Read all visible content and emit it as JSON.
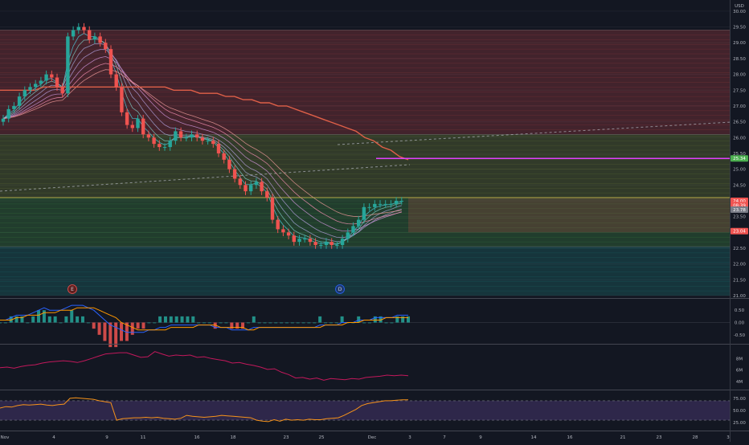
{
  "currency_label": "USD",
  "price_axis": {
    "ticks": [
      "30.00",
      "29.50",
      "29.00",
      "28.50",
      "28.00",
      "27.50",
      "27.00",
      "26.50",
      "26.00",
      "25.50",
      "25.00",
      "24.50",
      "24.00",
      "23.50",
      "23.00",
      "22.50",
      "22.00",
      "21.50",
      "21.00"
    ]
  },
  "price_tags": [
    {
      "label": "25.34",
      "value": 25.34,
      "color": "#4caf50"
    },
    {
      "label": "24.00",
      "value": 24.0,
      "color": "#ef5350"
    },
    {
      "label": "08:39",
      "value": 23.86,
      "color": "#ef5350"
    },
    {
      "label": "23.78",
      "value": 23.72,
      "color": "#787b86"
    },
    {
      "label": "23.04",
      "value": 23.04,
      "color": "#ef5350"
    }
  ],
  "x_axis_ticks": [
    "Nov",
    "4",
    "9",
    "11",
    "16",
    "18",
    "23",
    "25",
    "Dec",
    "3",
    "7",
    "9",
    "14",
    "16",
    "21",
    "23",
    "28",
    "3"
  ],
  "event_markers": [
    "E",
    "D"
  ],
  "macd_axis": {
    "ticks": [
      "0.50",
      "0.00",
      "-0.50"
    ]
  },
  "volume_axis": {
    "ticks": [
      "8M",
      "6M",
      "4M"
    ]
  },
  "rsi_axis": {
    "ticks": [
      "75.00",
      "50.00",
      "25.00"
    ]
  },
  "colors": {
    "up": "#26a69a",
    "down": "#ef5350",
    "background": "#131722",
    "ma_200": "#e06048",
    "level_line": "#e040fb",
    "rsi_line": "#f7931a",
    "macd_line": "#2962ff",
    "signal_line": "#ff9800",
    "volume_line": "#c2185b"
  },
  "chart_data": {
    "type": "candlestick",
    "price_range": [
      21.0,
      30.15
    ],
    "zones": [
      {
        "from": 26.1,
        "to": 29.4,
        "color": "red"
      },
      {
        "from": 24.1,
        "to": 26.1,
        "color": "olive"
      },
      {
        "from": 22.55,
        "to": 24.1,
        "color": "green"
      },
      {
        "from": 21.0,
        "to": 22.55,
        "color": "teal"
      }
    ],
    "horizontal_levels": [
      25.34,
      24.1
    ],
    "close": [
      26.6,
      26.9,
      27.0,
      27.3,
      27.5,
      27.6,
      27.7,
      27.8,
      28.0,
      27.9,
      27.6,
      27.4,
      29.2,
      29.4,
      29.5,
      29.4,
      29.1,
      29.2,
      29.0,
      28.8,
      28.0,
      27.6,
      26.8,
      26.4,
      26.3,
      26.6,
      26.1,
      26.0,
      25.8,
      25.7,
      25.7,
      25.9,
      26.2,
      26.0,
      26.0,
      26.1,
      26.0,
      25.9,
      25.9,
      25.8,
      25.5,
      25.3,
      25.0,
      24.7,
      24.5,
      24.3,
      24.5,
      24.6,
      24.3,
      24.1,
      23.4,
      23.1,
      23.0,
      22.9,
      22.7,
      22.8,
      22.8,
      22.7,
      22.6,
      22.6,
      22.7,
      22.6,
      22.6,
      22.8,
      23.0,
      23.2,
      23.4,
      23.8,
      23.8,
      23.9,
      23.9,
      23.9,
      23.9,
      24.0,
      24.0
    ],
    "ma_200": [
      27.5,
      27.5,
      27.5,
      27.5,
      27.5,
      27.6,
      27.6,
      27.6,
      27.6,
      27.6,
      27.6,
      27.6,
      27.6,
      27.6,
      27.6,
      27.6,
      27.6,
      27.6,
      27.6,
      27.6,
      27.5,
      27.5,
      27.5,
      27.4,
      27.4,
      27.4,
      27.3,
      27.3,
      27.2,
      27.2,
      27.1,
      27.1,
      27.0,
      27.0,
      26.9,
      26.8,
      26.7,
      26.6,
      26.5,
      26.4,
      26.3,
      26.2,
      26.0,
      25.9,
      25.7,
      25.6,
      25.4,
      25.3
    ],
    "macd": [
      0.1,
      0.1,
      0.2,
      0.3,
      0.3,
      0.3,
      0.4,
      0.5,
      0.6,
      0.5,
      0.5,
      0.5,
      0.6,
      0.7,
      0.7,
      0.7,
      0.6,
      0.5,
      0.3,
      0.1,
      -0.1,
      -0.2,
      -0.3,
      -0.4,
      -0.4,
      -0.4,
      -0.4,
      -0.3,
      -0.3,
      -0.2,
      -0.2,
      -0.1,
      -0.1,
      -0.1,
      -0.1,
      -0.1,
      -0.1,
      -0.1,
      -0.1,
      -0.2,
      -0.2,
      -0.2,
      -0.3,
      -0.3,
      -0.3,
      -0.3,
      -0.2,
      -0.2,
      -0.2,
      -0.2,
      -0.2,
      -0.2,
      -0.2,
      -0.2,
      -0.2,
      -0.2,
      -0.2,
      -0.2,
      -0.1,
      -0.1,
      -0.1,
      -0.1,
      0.0,
      0.0,
      0.0,
      0.1,
      0.1,
      0.1,
      0.2,
      0.2,
      0.2,
      0.2,
      0.3,
      0.3,
      0.3
    ],
    "macd_signal": [
      0.1,
      0.1,
      0.1,
      0.2,
      0.2,
      0.3,
      0.3,
      0.3,
      0.4,
      0.4,
      0.4,
      0.5,
      0.5,
      0.5,
      0.6,
      0.6,
      0.6,
      0.6,
      0.5,
      0.4,
      0.3,
      0.2,
      0.0,
      -0.1,
      -0.2,
      -0.3,
      -0.3,
      -0.3,
      -0.3,
      -0.3,
      -0.3,
      -0.2,
      -0.2,
      -0.2,
      -0.2,
      -0.2,
      -0.1,
      -0.1,
      -0.1,
      -0.1,
      -0.2,
      -0.2,
      -0.2,
      -0.2,
      -0.2,
      -0.3,
      -0.3,
      -0.2,
      -0.2,
      -0.2,
      -0.2,
      -0.2,
      -0.2,
      -0.2,
      -0.2,
      -0.2,
      -0.2,
      -0.2,
      -0.2,
      -0.1,
      -0.1,
      -0.1,
      -0.1,
      0.0,
      0.0,
      0.0,
      0.1,
      0.1,
      0.1,
      0.1,
      0.2,
      0.2,
      0.2,
      0.2,
      0.2
    ],
    "volume_m": [
      6.4,
      6.5,
      6.3,
      6.6,
      6.8,
      6.9,
      7.2,
      7.4,
      7.5,
      7.6,
      7.5,
      7.3,
      7.6,
      8.0,
      8.4,
      8.8,
      8.9,
      9.0,
      9.0,
      8.6,
      8.2,
      8.3,
      9.2,
      8.8,
      8.4,
      8.6,
      8.5,
      8.6,
      8.2,
      8.3,
      8.0,
      7.8,
      7.6,
      7.2,
      7.3,
      7.0,
      6.8,
      6.5,
      6.1,
      6.2,
      5.6,
      5.2,
      4.6,
      4.7,
      4.4,
      4.6,
      4.2,
      4.5,
      4.4,
      4.3,
      4.5,
      4.4,
      4.7,
      4.8,
      4.9,
      5.1,
      5.0,
      5.1,
      5.0
    ],
    "rsi": [
      55,
      58,
      57,
      60,
      62,
      61,
      62,
      63,
      61,
      60,
      62,
      63,
      75,
      76,
      75,
      74,
      73,
      70,
      68,
      66,
      30,
      33,
      34,
      35,
      35,
      36,
      35,
      36,
      34,
      33,
      32,
      34,
      40,
      38,
      37,
      36,
      37,
      38,
      40,
      39,
      38,
      37,
      36,
      35,
      30,
      28,
      27,
      31,
      28,
      32,
      30,
      31,
      30,
      32,
      31,
      31,
      33,
      34,
      35,
      40,
      46,
      52,
      60,
      64,
      66,
      68,
      70,
      70,
      71,
      72,
      72
    ],
    "rsi_levels": [
      70,
      30
    ]
  }
}
